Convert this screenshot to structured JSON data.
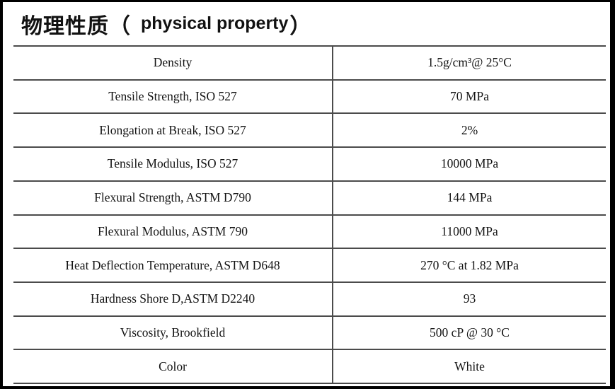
{
  "header": {
    "title_cn": "物理性质（",
    "title_en": "physical property",
    "title_close": "）"
  },
  "table": {
    "rows": [
      {
        "property": "Density",
        "value": "1.5g/cm³@ 25°C"
      },
      {
        "property": "Tensile Strength, ISO 527",
        "value": "70 MPa"
      },
      {
        "property": "Elongation at Break, ISO 527",
        "value": "2%"
      },
      {
        "property": "Tensile Modulus, ISO 527",
        "value": "10000 MPa"
      },
      {
        "property": "Flexural Strength, ASTM D790",
        "value": "144 MPa"
      },
      {
        "property": "Flexural Modulus, ASTM 790",
        "value": "11000 MPa"
      },
      {
        "property": "Heat Deflection Temperature, ASTM D648",
        "value": "270 °C at 1.82 MPa"
      },
      {
        "property": "Hardness Shore D,ASTM D2240",
        "value": "93"
      },
      {
        "property": "Viscosity, Brookfield",
        "value": "500 cP @ 30 °C"
      },
      {
        "property": "Color",
        "value": "White"
      }
    ]
  },
  "colors": {
    "frame": "#000000",
    "grid_line": "#4b4b4b",
    "text": "#141414"
  }
}
